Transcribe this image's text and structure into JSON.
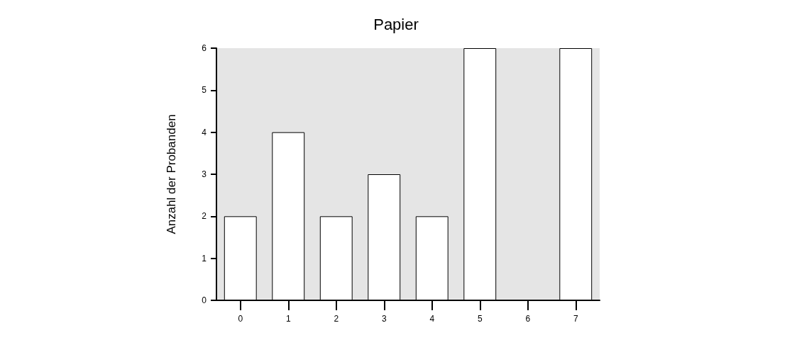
{
  "chart_data": {
    "type": "bar",
    "title": "Papier",
    "ylabel": "Anzahl der Probanden",
    "categories": [
      "0",
      "1",
      "2",
      "3",
      "4",
      "5",
      "6",
      "7"
    ],
    "values": [
      2,
      4,
      2,
      3,
      2,
      6,
      0,
      6
    ],
    "color": "#ffffff",
    "ylim": [
      0,
      6
    ],
    "yticks": [
      0,
      1,
      2,
      3,
      4,
      5,
      6
    ],
    "grid": false
  }
}
